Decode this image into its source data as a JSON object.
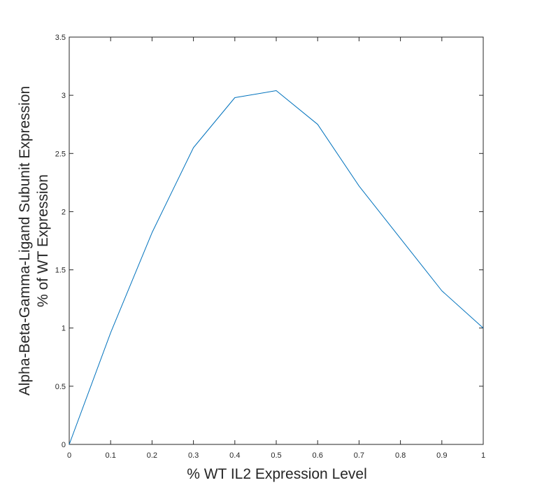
{
  "chart_data": {
    "type": "line",
    "title": "",
    "xlabel": "% WT IL2 Expression Level",
    "ylabel_lines": [
      "Alpha-Beta-Gamma-Ligand Subunit Expression",
      "% of WT Expression"
    ],
    "xlim": [
      0,
      1
    ],
    "ylim": [
      0,
      3.5
    ],
    "x_ticks": [
      0,
      0.1,
      0.2,
      0.3,
      0.4,
      0.5,
      0.6,
      0.7,
      0.8,
      0.9,
      1
    ],
    "x_tick_labels": [
      "0",
      "0.1",
      "0.2",
      "0.3",
      "0.4",
      "0.5",
      "0.6",
      "0.7",
      "0.8",
      "0.9",
      "1"
    ],
    "y_ticks": [
      0,
      0.5,
      1,
      1.5,
      2,
      2.5,
      3,
      3.5
    ],
    "y_tick_labels": [
      "0",
      "0.5",
      "1",
      "1.5",
      "2",
      "2.5",
      "3",
      "3.5"
    ],
    "grid": false,
    "series": [
      {
        "color": "#0072bd",
        "x": [
          0,
          0.1,
          0.2,
          0.3,
          0.4,
          0.5,
          0.6,
          0.7,
          0.8,
          0.9,
          1.0
        ],
        "y": [
          0,
          0.96,
          1.82,
          2.55,
          2.98,
          3.04,
          2.75,
          2.22,
          1.77,
          1.32,
          1.0
        ]
      }
    ]
  }
}
